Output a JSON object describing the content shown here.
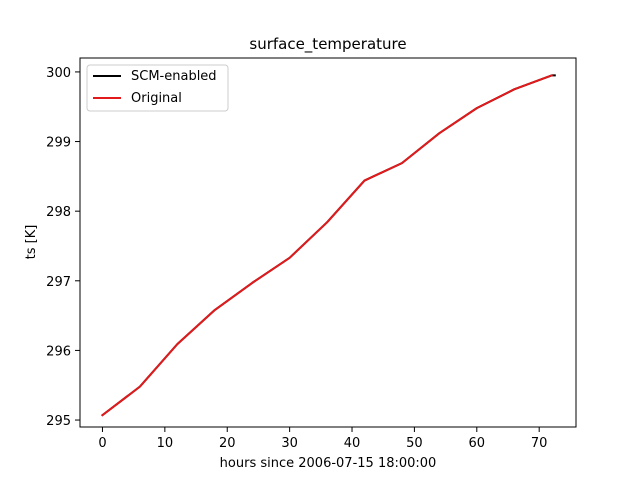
{
  "chart_data": {
    "type": "line",
    "title": "surface_temperature",
    "xlabel": "hours since 2006-07-15 18:00:00",
    "ylabel": "ts [K]",
    "xlim": [
      -3.6,
      75.9
    ],
    "ylim": [
      294.9,
      300.2
    ],
    "xticks": [
      0,
      10,
      20,
      30,
      40,
      50,
      60,
      70
    ],
    "yticks": [
      295,
      296,
      297,
      298,
      299,
      300
    ],
    "grid": false,
    "legend_position": "upper left",
    "series": [
      {
        "name": "SCM-enabled",
        "color": "#000000",
        "x": [
          0,
          6,
          12,
          18,
          24,
          30,
          36,
          42,
          48,
          54,
          60,
          66,
          72,
          72.5
        ],
        "y": [
          295.07,
          295.48,
          296.09,
          296.58,
          296.97,
          297.33,
          297.84,
          298.44,
          298.69,
          299.12,
          299.48,
          299.75,
          299.95,
          299.95
        ]
      },
      {
        "name": "Original",
        "color": "#e31a1c",
        "x": [
          0,
          6,
          12,
          18,
          24,
          30,
          36,
          42,
          48,
          54,
          60,
          66,
          72
        ],
        "y": [
          295.07,
          295.48,
          296.09,
          296.58,
          296.97,
          297.33,
          297.84,
          298.44,
          298.69,
          299.12,
          299.48,
          299.75,
          299.95
        ]
      }
    ]
  }
}
